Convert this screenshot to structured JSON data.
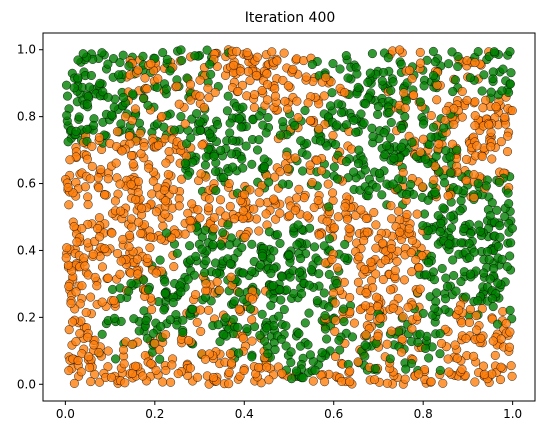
{
  "chart_data": {
    "type": "scatter",
    "title": "Iteration 400",
    "xlabel": "",
    "ylabel": "",
    "xlim": [
      -0.05,
      1.05
    ],
    "ylim": [
      -0.05,
      1.05
    ],
    "x_ticks": [
      0.0,
      0.2,
      0.4,
      0.6,
      0.8,
      1.0
    ],
    "x_tick_labels": [
      "0.0",
      "0.2",
      "0.4",
      "0.6",
      "0.8",
      "1.0"
    ],
    "y_ticks": [
      0.0,
      0.2,
      0.4,
      0.6,
      0.8,
      1.0
    ],
    "y_tick_labels": [
      "0.0",
      "0.2",
      "0.4",
      "0.6",
      "0.8",
      "1.0"
    ],
    "grid": false,
    "legend": "none",
    "point_count_approx": 2500,
    "series": [
      {
        "color": "#ff7f0e",
        "edge_color": "#000000",
        "regions": [
          {
            "x": [
              0.0,
              0.22
            ],
            "y": [
              0.25,
              0.72
            ]
          },
          {
            "x": [
              0.0,
              0.12
            ],
            "y": [
              0.0,
              0.25
            ]
          },
          {
            "x": [
              0.12,
              0.45
            ],
            "y": [
              0.0,
              0.12
            ]
          },
          {
            "x": [
              0.2,
              0.45
            ],
            "y": [
              0.45,
              0.6
            ]
          },
          {
            "x": [
              0.15,
              0.3
            ],
            "y": [
              0.72,
              0.95
            ]
          },
          {
            "x": [
              0.35,
              0.5
            ],
            "y": [
              0.85,
              1.0
            ]
          },
          {
            "x": [
              0.48,
              0.62
            ],
            "y": [
              0.55,
              0.88
            ]
          },
          {
            "x": [
              0.6,
              0.78
            ],
            "y": [
              0.25,
              0.55
            ]
          },
          {
            "x": [
              0.75,
              0.92
            ],
            "y": [
              0.82,
              1.0
            ]
          },
          {
            "x": [
              0.78,
              1.0
            ],
            "y": [
              0.58,
              0.82
            ]
          },
          {
            "x": [
              0.6,
              1.0
            ],
            "y": [
              0.0,
              0.22
            ]
          },
          {
            "x": [
              0.3,
              0.42
            ],
            "y": [
              0.18,
              0.3
            ]
          }
        ]
      },
      {
        "color": "#008000",
        "edge_color": "#000000",
        "regions": [
          {
            "x": [
              0.0,
              0.35
            ],
            "y": [
              0.75,
              1.0
            ]
          },
          {
            "x": [
              0.3,
              0.6
            ],
            "y": [
              0.6,
              0.8
            ]
          },
          {
            "x": [
              0.22,
              0.5
            ],
            "y": [
              0.3,
              0.45
            ]
          },
          {
            "x": [
              0.1,
              0.35
            ],
            "y": [
              0.1,
              0.3
            ]
          },
          {
            "x": [
              0.38,
              0.62
            ],
            "y": [
              0.08,
              0.4
            ]
          },
          {
            "x": [
              0.6,
              0.85
            ],
            "y": [
              0.55,
              0.95
            ]
          },
          {
            "x": [
              0.82,
              1.0
            ],
            "y": [
              0.2,
              0.6
            ]
          },
          {
            "x": [
              0.82,
              1.0
            ],
            "y": [
              0.88,
              1.0
            ]
          },
          {
            "x": [
              0.65,
              0.82
            ],
            "y": [
              0.05,
              0.2
            ]
          }
        ]
      }
    ]
  }
}
